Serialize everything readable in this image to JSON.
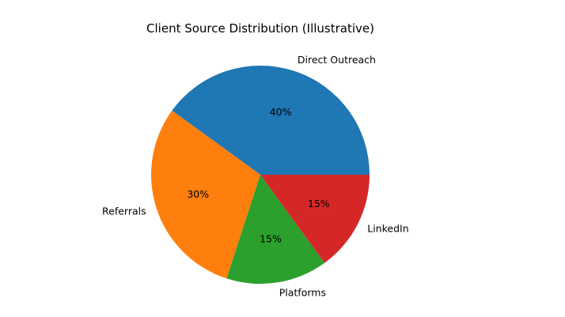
{
  "chart_data": {
    "type": "pie",
    "title": "Client Source Distribution (Illustrative)",
    "slices": [
      {
        "label": "Direct Outreach",
        "value": 40,
        "pct_label": "40%",
        "color": "#1f77b4"
      },
      {
        "label": "Referrals",
        "value": 30,
        "pct_label": "30%",
        "color": "#ff7f0e"
      },
      {
        "label": "Platforms",
        "value": 15,
        "pct_label": "15%",
        "color": "#2ca02c"
      },
      {
        "label": "LinkedIn",
        "value": 15,
        "pct_label": "15%",
        "color": "#d62728"
      }
    ],
    "start_angle": 0,
    "direction": "counterclockwise"
  }
}
